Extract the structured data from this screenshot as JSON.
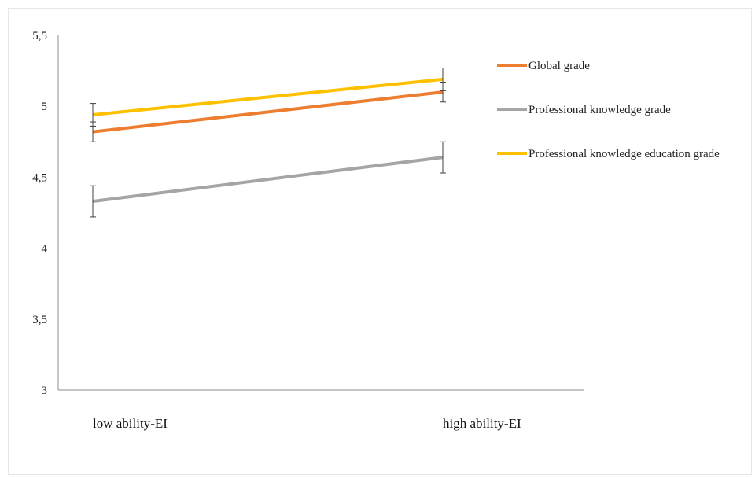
{
  "chart_data": {
    "type": "line",
    "categories": [
      "low ability-EI",
      "high ability-EI"
    ],
    "ylim": [
      3,
      5.5
    ],
    "yticks": [
      "3",
      "3,5",
      "4",
      "4,5",
      "5",
      "5,5"
    ],
    "ytick_values": [
      3,
      3.5,
      4,
      4.5,
      5,
      5.5
    ],
    "grid": false,
    "legend_position": "right",
    "series": [
      {
        "name": "Global grade",
        "color": "#ED7D31",
        "values": [
          4.82,
          5.1
        ],
        "error": [
          0.07,
          0.07
        ]
      },
      {
        "name": "Professional knowledge grade",
        "color": "#A5A5A5",
        "values": [
          4.33,
          4.64
        ],
        "error": [
          0.11,
          0.11
        ]
      },
      {
        "name": "Professional knowledge education grade",
        "color": "#FFC000",
        "values": [
          4.94,
          5.19
        ],
        "error": [
          0.08,
          0.08
        ]
      }
    ]
  }
}
